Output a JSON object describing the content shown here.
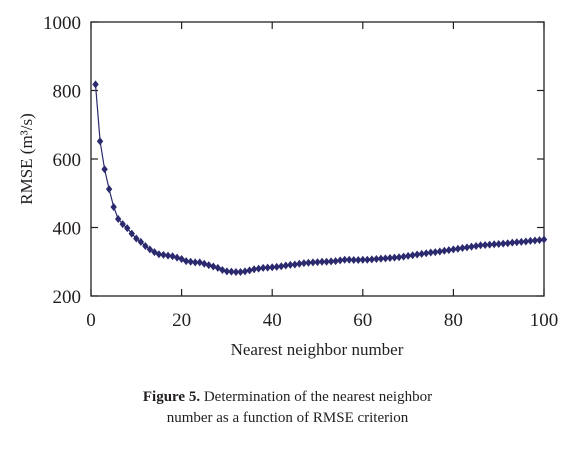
{
  "chart_data": {
    "type": "line",
    "title": "",
    "xlabel": "Nearest neighbor number",
    "ylabel": "RMSE (m³/s)",
    "xlim": [
      0,
      100
    ],
    "ylim": [
      200,
      1000
    ],
    "x_ticks": [
      0,
      20,
      40,
      60,
      80,
      100
    ],
    "y_ticks": [
      200,
      400,
      600,
      800,
      1000
    ],
    "grid": false,
    "legend": "none",
    "marker": "diamond",
    "color": "#2b2a6e",
    "series": [
      {
        "x": [
          1,
          2,
          3,
          4,
          5,
          6,
          7,
          8,
          9,
          10,
          11,
          12,
          13,
          14,
          15,
          16,
          17,
          18,
          19,
          20,
          21,
          22,
          23,
          24,
          25,
          26,
          27,
          28,
          29,
          30,
          31,
          32,
          33,
          34,
          35,
          36,
          37,
          38,
          39,
          40,
          41,
          42,
          43,
          44,
          45,
          46,
          47,
          48,
          49,
          50,
          51,
          52,
          53,
          54,
          55,
          56,
          57,
          58,
          59,
          60,
          61,
          62,
          63,
          64,
          65,
          66,
          67,
          68,
          69,
          70,
          71,
          72,
          73,
          74,
          75,
          76,
          77,
          78,
          79,
          80,
          81,
          82,
          83,
          84,
          85,
          86,
          87,
          88,
          89,
          90,
          91,
          92,
          93,
          94,
          95,
          96,
          97,
          98,
          99,
          100
        ],
        "values": [
          818,
          652,
          570,
          512,
          460,
          425,
          410,
          398,
          382,
          368,
          358,
          346,
          336,
          328,
          322,
          320,
          318,
          316,
          312,
          308,
          302,
          300,
          298,
          298,
          294,
          290,
          286,
          282,
          276,
          272,
          271,
          270,
          270,
          272,
          275,
          278,
          280,
          282,
          283,
          284,
          285,
          287,
          289,
          291,
          292,
          294,
          296,
          297,
          298,
          299,
          300,
          300,
          301,
          302,
          304,
          306,
          306,
          305,
          305,
          306,
          306,
          307,
          308,
          309,
          310,
          311,
          312,
          313,
          315,
          317,
          319,
          321,
          323,
          325,
          327,
          328,
          330,
          332,
          334,
          336,
          338,
          340,
          342,
          344,
          346,
          348,
          349,
          350,
          351,
          352,
          353,
          354,
          356,
          357,
          358,
          359,
          361,
          362,
          363,
          365
        ]
      }
    ]
  },
  "caption": {
    "label": "Figure 5.",
    "line1_rest": " Determination of the nearest neighbor",
    "line2": "number as a function of RMSE criterion"
  }
}
